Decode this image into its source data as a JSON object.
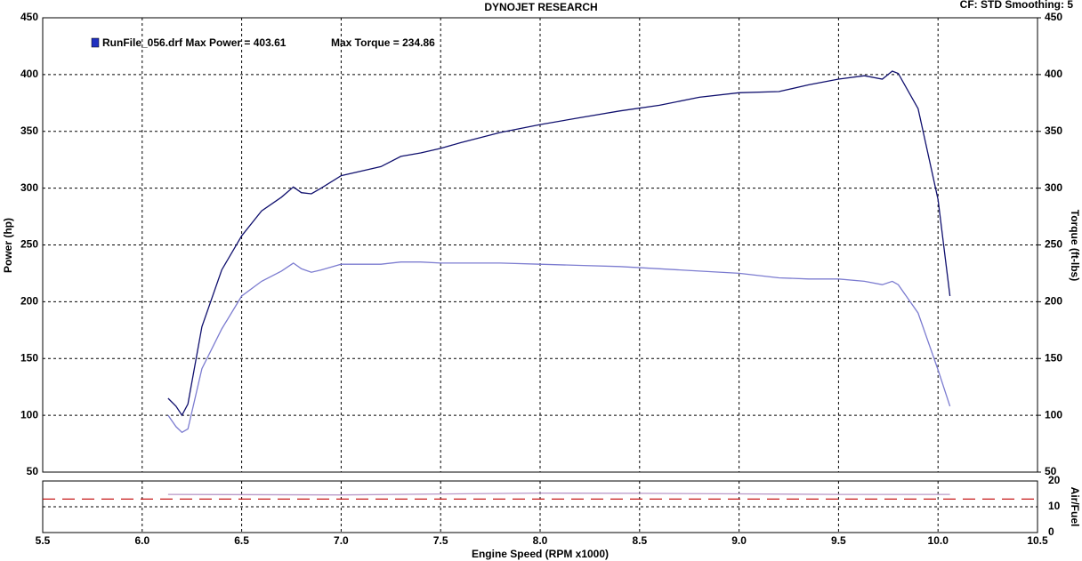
{
  "chart_data": [
    {
      "type": "line",
      "title": "DYNOJET RESEARCH",
      "subtitle": "CF: STD  Smoothing: 5",
      "legend_text": [
        "RunFile_056.drf Max Power = 403.61",
        "Max Torque = 234.86"
      ],
      "ylabel": "Power (hp)",
      "y2label": "Torque (ft-lbs)",
      "xlim": [
        5.5,
        10.5
      ],
      "xticks": [
        5.5,
        {
          "value": 6,
          "label": "6.0"
        },
        6.5,
        {
          "value": 7,
          "label": "7.0"
        },
        7.5,
        {
          "value": 8,
          "label": "8.0"
        },
        8.5,
        {
          "value": 9,
          "label": "9.0"
        },
        9.5,
        {
          "value": 10,
          "label": "10.0"
        },
        10.5
      ],
      "ylim": [
        50,
        450
      ],
      "yticks": [
        50,
        100,
        150,
        200,
        250,
        300,
        350,
        400,
        450
      ],
      "y2lim": [
        50,
        450
      ],
      "y2ticks": [
        50,
        100,
        150,
        200,
        250,
        300,
        350,
        400,
        450
      ],
      "grid": true,
      "x": [
        6.13,
        6.17,
        6.2,
        6.23,
        6.3,
        6.4,
        6.5,
        6.6,
        6.7,
        6.76,
        6.8,
        6.85,
        6.9,
        7.0,
        7.1,
        7.2,
        7.3,
        7.4,
        7.5,
        7.6,
        7.8,
        8.0,
        8.2,
        8.4,
        8.6,
        8.8,
        9.0,
        9.2,
        9.35,
        9.5,
        9.63,
        9.72,
        9.77,
        9.8,
        9.9,
        10.0,
        10.06
      ],
      "series": [
        {
          "color": "#10106e",
          "values": [
            115,
            108,
            100,
            110,
            178,
            228,
            258,
            280,
            292,
            301,
            296,
            295,
            300,
            311,
            315,
            319,
            328,
            331,
            335,
            340,
            349,
            356,
            362,
            368,
            373,
            380,
            384,
            385,
            391,
            396,
            399,
            396,
            403,
            401,
            370,
            290,
            205
          ]
        },
        {
          "color": "#7c7cd0",
          "axis": "y2",
          "values": [
            100,
            90,
            85,
            88,
            141,
            176,
            205,
            218,
            227,
            234,
            229,
            226,
            228,
            233,
            233,
            233,
            235,
            235,
            234,
            234,
            234,
            233,
            232,
            231,
            229,
            227,
            225,
            221,
            220,
            220,
            218,
            215,
            218,
            215,
            190,
            140,
            108
          ]
        }
      ]
    },
    {
      "type": "line",
      "ylabel": "Air/Fuel",
      "xlabel": "Engine Speed (RPM x1000)",
      "ylim": [
        0,
        20
      ],
      "yticks": [
        0,
        10,
        20
      ],
      "grid": true,
      "reference_line": {
        "value": 13,
        "color": "#c00000"
      },
      "x": [
        6.13,
        7.0,
        8.0,
        8.5,
        9.0,
        9.5,
        10.06
      ],
      "series": [
        {
          "color": "#b898c8",
          "values": [
            14.8,
            14.6,
            15.3,
            15.2,
            15.0,
            14.8,
            14.8
          ]
        }
      ]
    }
  ]
}
